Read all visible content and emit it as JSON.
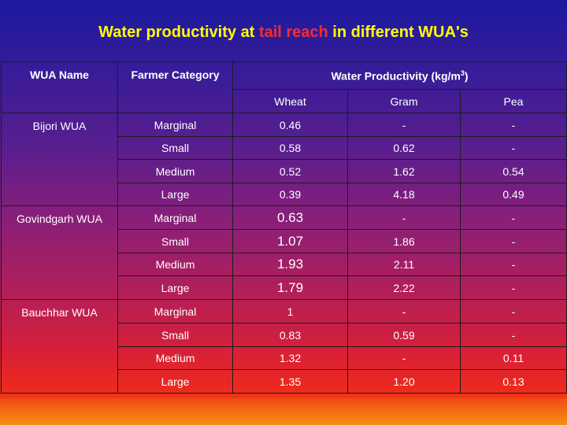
{
  "title": {
    "prefix": "Water productivity at ",
    "highlight": "tail reach",
    "suffix": " in different WUA's"
  },
  "table": {
    "headers": {
      "wua_name": "WUA Name",
      "farmer_category": "Farmer Category",
      "water_productivity": "Water Productivity (kg/m",
      "unit_exponent": "3",
      "unit_close": ")",
      "crops": [
        "Wheat",
        "Gram",
        "Pea"
      ]
    },
    "groups": [
      {
        "wua": "Bijori WUA",
        "rows": [
          {
            "category": "Marginal",
            "wheat": "0.46",
            "gram": "-",
            "pea": "-"
          },
          {
            "category": "Small",
            "wheat": "0.58",
            "gram": "0.62",
            "pea": "-"
          },
          {
            "category": "Medium",
            "wheat": "0.52",
            "gram": "1.62",
            "pea": "0.54"
          },
          {
            "category": "Large",
            "wheat": "0.39",
            "gram": "4.18",
            "pea": "0.49"
          }
        ]
      },
      {
        "wua": "Govindgarh WUA",
        "rows": [
          {
            "category": "Marginal",
            "wheat": "0.63",
            "gram": "-",
            "pea": "-"
          },
          {
            "category": "Small",
            "wheat": "1.07",
            "gram": "1.86",
            "pea": "-"
          },
          {
            "category": "Medium",
            "wheat": "1.93",
            "gram": "2.11",
            "pea": "-"
          },
          {
            "category": "Large",
            "wheat": "1.79",
            "gram": "2.22",
            "pea": "-"
          }
        ]
      },
      {
        "wua": "Bauchhar WUA",
        "rows": [
          {
            "category": "Marginal",
            "wheat": "1",
            "gram": "-",
            "pea": "-"
          },
          {
            "category": "Small",
            "wheat": "0.83",
            "gram": "0.59",
            "pea": "-"
          },
          {
            "category": "Medium",
            "wheat": "1.32",
            "gram": "-",
            "pea": "0.11"
          },
          {
            "category": "Large",
            "wheat": "1.35",
            "gram": "1.20",
            "pea": "0.13"
          }
        ]
      }
    ]
  }
}
